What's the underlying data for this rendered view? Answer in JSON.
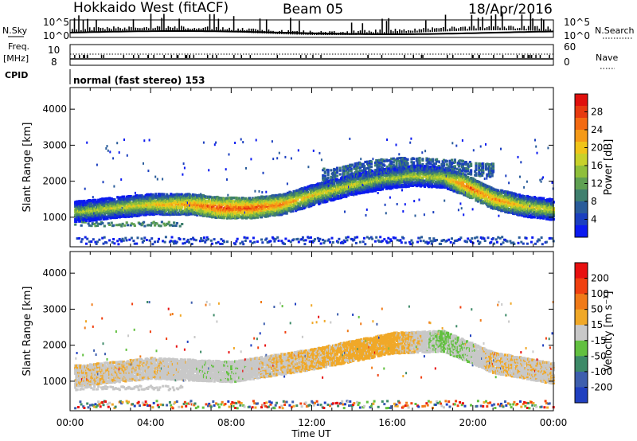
{
  "header": {
    "radar": "Hokkaido West (fitACF)",
    "beam": "Beam 05",
    "date": "18/Apr/2016"
  },
  "aux_panels": {
    "nsky_label": "N.Sky",
    "nsky_ticks": [
      "10^5",
      "10^0"
    ],
    "nsearch_label": "N.Search",
    "nsearch_ticks": [
      "10^5",
      "10^0"
    ],
    "freq_label_line1": "Freq.",
    "freq_label_line2": "[MHz]",
    "freq_ticks": [
      "10",
      "8"
    ],
    "nave_label": "Nave",
    "nave_ticks": [
      "60",
      "0"
    ],
    "cpid_label": "CPID",
    "cpid_text": "normal (fast stereo) 153"
  },
  "chart_data": [
    {
      "type": "heatmap",
      "name": "power",
      "xlabel": "Time UT",
      "ylabel": "Slant Range [km]",
      "xlim": [
        0,
        24
      ],
      "ylim": [
        180,
        4600
      ],
      "x_ticks": [
        "00:00",
        "04:00",
        "08:00",
        "12:00",
        "16:00",
        "20:00",
        "00:00"
      ],
      "y_ticks": [
        "1000",
        "2000",
        "3000",
        "4000"
      ],
      "colorbar": {
        "label": "Power [dB]",
        "range": [
          0,
          32
        ],
        "ticks": [
          "4",
          "8",
          "12",
          "16",
          "20",
          "24",
          "28"
        ],
        "colors": [
          "#0b1af0",
          "#1b3fbf",
          "#2a5c9a",
          "#3f7f6e",
          "#5fa052",
          "#8fbf3a",
          "#c8d12a",
          "#f0c419",
          "#f59a18",
          "#f36a12",
          "#e73a10",
          "#e0100d"
        ]
      },
      "features": [
        {
          "desc": "main band",
          "t": [
            0.5,
            2,
            4,
            6,
            7.5,
            9,
            10.5,
            12,
            14,
            15.5,
            17,
            18.5,
            19.5,
            21,
            22.5,
            24
          ],
          "range": [
            1150,
            1250,
            1350,
            1350,
            1250,
            1250,
            1350,
            1600,
            1900,
            2050,
            2150,
            2100,
            1900,
            1500,
            1300,
            1200
          ],
          "peak_db": [
            16,
            18,
            20,
            24,
            28,
            27,
            24,
            20,
            18,
            16,
            17,
            18,
            26,
            24,
            20,
            18
          ]
        },
        {
          "desc": "upper band",
          "t": [
            13,
            14.5,
            16,
            17.5,
            19,
            20.5
          ],
          "range": [
            2150,
            2350,
            2450,
            2450,
            2400,
            2300
          ],
          "peak_db": [
            8,
            10,
            12,
            10,
            9,
            8
          ]
        },
        {
          "desc": "lower band",
          "t": [
            0.5,
            2,
            3.5,
            5
          ],
          "range": [
            850,
            800,
            780,
            800
          ],
          "peak_db": [
            10,
            12,
            10,
            8
          ]
        }
      ]
    },
    {
      "type": "heatmap",
      "name": "velocity",
      "xlabel": "Time UT",
      "ylabel": "Slant Range [km]",
      "xlim": [
        0,
        24
      ],
      "ylim": [
        180,
        4600
      ],
      "x_ticks": [
        "00:00",
        "04:00",
        "08:00",
        "12:00",
        "16:00",
        "20:00",
        "00:00"
      ],
      "y_ticks": [
        "1000",
        "2000",
        "3000",
        "4000"
      ],
      "colorbar": {
        "label": "Velocity [m s⁻¹]",
        "range": [
          -250,
          250
        ],
        "ticks": [
          "200",
          "100",
          "50",
          "15",
          "-15",
          "-50",
          "-100",
          "-200"
        ],
        "colors": [
          "#2040c0",
          "#3e5fae",
          "#3d8a68",
          "#62c040",
          "#c8c8c8",
          "#f0a828",
          "#f07a18",
          "#f04010",
          "#e81010"
        ]
      },
      "features": [
        {
          "desc": "main band mostly gray with orange patches",
          "t": [
            0.5,
            4,
            8,
            12,
            16,
            18.5,
            21,
            24
          ],
          "range": [
            1150,
            1350,
            1250,
            1600,
            2050,
            2100,
            1500,
            1200
          ],
          "typical_velocity": [
            -10,
            -5,
            5,
            -20,
            -30,
            20,
            -10,
            -5
          ]
        }
      ]
    }
  ]
}
